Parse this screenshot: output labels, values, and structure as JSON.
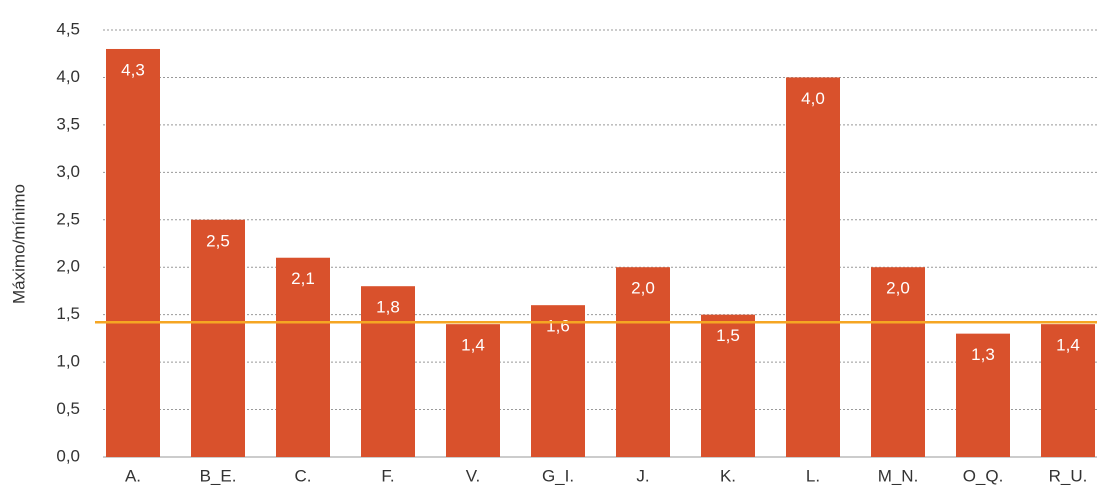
{
  "chart_data": {
    "type": "bar",
    "y_label": "Máximo/mínimo",
    "categories": [
      "A.",
      "B_E.",
      "C.",
      "F.",
      "V.",
      "G_I.",
      "J.",
      "K.",
      "L.",
      "M_N.",
      "O_Q.",
      "R_U."
    ],
    "values": [
      4.3,
      2.5,
      2.1,
      1.8,
      1.4,
      1.6,
      2.0,
      1.5,
      4.0,
      2.0,
      1.3,
      1.4
    ],
    "value_labels": [
      "4,3",
      "2,5",
      "2,1",
      "1,8",
      "1,4",
      "1,6",
      "2,0",
      "1,5",
      "4,0",
      "2,0",
      "1,3",
      "1,4"
    ],
    "color": "#d9512c",
    "reference_line": 1.42,
    "reference_color": "#f5a623",
    "ylim": [
      0,
      4.5
    ],
    "yticks": [
      {
        "value": 0,
        "label": "0,0"
      },
      {
        "value": 0.5,
        "label": "0,5"
      },
      {
        "value": 1,
        "label": "1,0"
      },
      {
        "value": 1.5,
        "label": "1,5"
      },
      {
        "value": 2,
        "label": "2,0"
      },
      {
        "value": 2.5,
        "label": "2,5"
      },
      {
        "value": 3,
        "label": "3,0"
      },
      {
        "value": 3.5,
        "label": "3,5"
      },
      {
        "value": 4,
        "label": "4,0"
      },
      {
        "value": 4.5,
        "label": "4,5"
      }
    ],
    "grid": true
  }
}
